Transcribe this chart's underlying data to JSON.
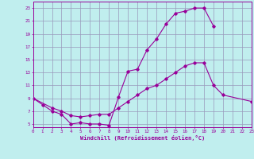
{
  "xlabel": "Windchill (Refroidissement éolien,°C)",
  "background_color": "#c0eeee",
  "grid_color": "#9999bb",
  "line_color": "#990099",
  "xlim": [
    0,
    23
  ],
  "ylim": [
    4.5,
    24.0
  ],
  "xticks": [
    0,
    1,
    2,
    3,
    4,
    5,
    6,
    7,
    8,
    9,
    10,
    11,
    12,
    13,
    14,
    15,
    16,
    17,
    18,
    19,
    20,
    21,
    22,
    23
  ],
  "yticks": [
    5,
    7,
    9,
    11,
    13,
    15,
    17,
    19,
    21,
    23
  ],
  "curve1_x": [
    0,
    1,
    2,
    3,
    4,
    5,
    6,
    7,
    8,
    9,
    10,
    11,
    12,
    13,
    14,
    15,
    16,
    17,
    18,
    19
  ],
  "curve1_y": [
    9,
    8,
    7,
    6.5,
    5,
    5.2,
    5.0,
    5.0,
    4.8,
    9.2,
    13.2,
    13.5,
    16.5,
    18.2,
    20.5,
    22.2,
    22.5,
    23.0,
    23.0,
    20.2
  ],
  "curve2_x": [
    0,
    2,
    3,
    4,
    5,
    6,
    7,
    8,
    9,
    10,
    11,
    12,
    13,
    14,
    15,
    16,
    17,
    18,
    19,
    20,
    23
  ],
  "curve2_y": [
    9.0,
    7.5,
    7.0,
    6.3,
    6.1,
    6.3,
    6.5,
    6.5,
    7.5,
    8.5,
    9.5,
    10.5,
    11.0,
    12.0,
    13.0,
    14.0,
    14.5,
    14.5,
    11.0,
    9.5,
    8.5
  ]
}
